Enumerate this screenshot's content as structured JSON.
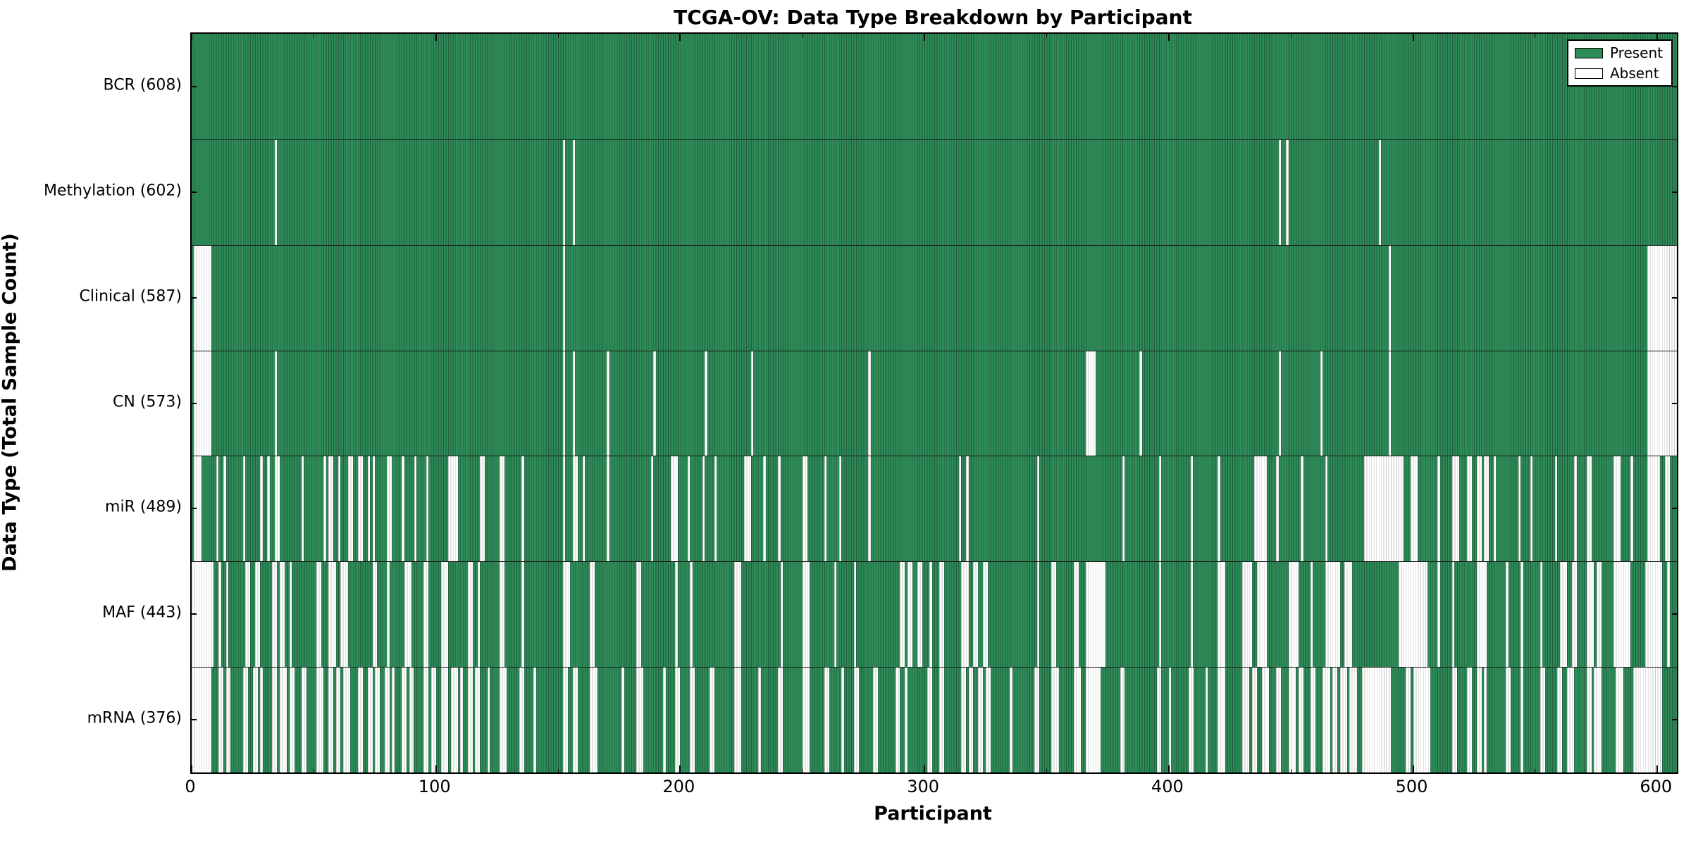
{
  "title": "TCGA-OV: Data Type Breakdown by Participant",
  "legend": {
    "present_label": "Present",
    "absent_label": "Absent"
  },
  "chart_data": {
    "type": "heatmap",
    "title": "TCGA-OV: Data Type Breakdown by Participant",
    "xlabel": "Participant",
    "ylabel": "Data Type (Total Sample Count)",
    "xlim": [
      0,
      608
    ],
    "n_participants": 608,
    "x_ticks": [
      0,
      100,
      200,
      300,
      400,
      500,
      600
    ],
    "x_minor_tick_step": 50,
    "grid": false,
    "legend_position": "upper right",
    "present_color": "#2e8b57",
    "present_edge_color": "#1e5e3d",
    "absent_color": "#ffffff",
    "absent_edge_color": "#c8c8c8",
    "legend_entries": [
      {
        "label": "Present",
        "color": "#2e8b57"
      },
      {
        "label": "Absent",
        "color": "#ffffff"
      }
    ],
    "rows": [
      {
        "label": "BCR (608)",
        "data_type": "BCR",
        "present_count": 608,
        "absent_count": 0,
        "absent_runs": []
      },
      {
        "label": "Methylation (602)",
        "data_type": "Methylation",
        "present_count": 602,
        "absent_count": 6,
        "absent_runs": [
          [
            34,
            1
          ],
          [
            152,
            1
          ],
          [
            156,
            1
          ],
          [
            445,
            1
          ],
          [
            448,
            1
          ],
          [
            486,
            1
          ]
        ]
      },
      {
        "label": "Clinical (587)",
        "data_type": "Clinical",
        "present_count": 587,
        "absent_count": 21,
        "absent_runs": [
          [
            1,
            7
          ],
          [
            152,
            1
          ],
          [
            490,
            1
          ],
          [
            596,
            12
          ]
        ]
      },
      {
        "label": "CN (573)",
        "data_type": "CN",
        "present_count": 573,
        "absent_count": 35,
        "absent_runs": [
          [
            1,
            7
          ],
          [
            34,
            1
          ],
          [
            152,
            1
          ],
          [
            156,
            1
          ],
          [
            170,
            1
          ],
          [
            189,
            1
          ],
          [
            210,
            1
          ],
          [
            229,
            1
          ],
          [
            277,
            1
          ],
          [
            366,
            4
          ],
          [
            388,
            1
          ],
          [
            445,
            1
          ],
          [
            462,
            1
          ],
          [
            490,
            1
          ],
          [
            596,
            12
          ]
        ]
      },
      {
        "label": "miR (489)",
        "data_type": "miR",
        "present_count": 489,
        "absent_count": 119,
        "absent_runs": [
          [
            1,
            3
          ],
          [
            10,
            1
          ],
          [
            13,
            1
          ],
          [
            21,
            1
          ],
          [
            28,
            1
          ],
          [
            31,
            1
          ],
          [
            34,
            2
          ],
          [
            45,
            1
          ],
          [
            54,
            1
          ],
          [
            56,
            2
          ],
          [
            60,
            1
          ],
          [
            64,
            2
          ],
          [
            68,
            2
          ],
          [
            72,
            1
          ],
          [
            74,
            1
          ],
          [
            80,
            2
          ],
          [
            86,
            1
          ],
          [
            91,
            1
          ],
          [
            96,
            1
          ],
          [
            105,
            4
          ],
          [
            118,
            2
          ],
          [
            126,
            2
          ],
          [
            135,
            1
          ],
          [
            152,
            1
          ],
          [
            156,
            2
          ],
          [
            160,
            1
          ],
          [
            170,
            1
          ],
          [
            188,
            1
          ],
          [
            196,
            3
          ],
          [
            203,
            1
          ],
          [
            209,
            1
          ],
          [
            214,
            1
          ],
          [
            226,
            3
          ],
          [
            234,
            1
          ],
          [
            240,
            1
          ],
          [
            250,
            2
          ],
          [
            259,
            1
          ],
          [
            265,
            1
          ],
          [
            277,
            1
          ],
          [
            314,
            1
          ],
          [
            317,
            1
          ],
          [
            346,
            1
          ],
          [
            381,
            1
          ],
          [
            396,
            1
          ],
          [
            409,
            1
          ],
          [
            420,
            1
          ],
          [
            435,
            5
          ],
          [
            444,
            1
          ],
          [
            454,
            1
          ],
          [
            464,
            1
          ],
          [
            480,
            16
          ],
          [
            499,
            3
          ],
          [
            510,
            1
          ],
          [
            516,
            3
          ],
          [
            522,
            2
          ],
          [
            526,
            2
          ],
          [
            529,
            2
          ],
          [
            533,
            1
          ],
          [
            543,
            1
          ],
          [
            548,
            1
          ],
          [
            558,
            1
          ],
          [
            566,
            1
          ],
          [
            571,
            2
          ],
          [
            582,
            3
          ],
          [
            589,
            1
          ],
          [
            596,
            5
          ],
          [
            603,
            2
          ]
        ]
      },
      {
        "label": "MAF (443)",
        "data_type": "MAF",
        "present_count": 443,
        "absent_count": 165,
        "absent_runs": [
          [
            0,
            9
          ],
          [
            11,
            1
          ],
          [
            14,
            1
          ],
          [
            22,
            2
          ],
          [
            26,
            2
          ],
          [
            33,
            2
          ],
          [
            36,
            2
          ],
          [
            40,
            1
          ],
          [
            51,
            2
          ],
          [
            56,
            3
          ],
          [
            61,
            3
          ],
          [
            74,
            2
          ],
          [
            80,
            1
          ],
          [
            87,
            3
          ],
          [
            95,
            2
          ],
          [
            102,
            3
          ],
          [
            113,
            2
          ],
          [
            117,
            1
          ],
          [
            126,
            2
          ],
          [
            135,
            1
          ],
          [
            152,
            3
          ],
          [
            163,
            2
          ],
          [
            182,
            2
          ],
          [
            198,
            1
          ],
          [
            204,
            1
          ],
          [
            222,
            3
          ],
          [
            241,
            1
          ],
          [
            250,
            3
          ],
          [
            263,
            1
          ],
          [
            271,
            1
          ],
          [
            290,
            2
          ],
          [
            293,
            2
          ],
          [
            297,
            2
          ],
          [
            302,
            1
          ],
          [
            306,
            2
          ],
          [
            315,
            3
          ],
          [
            320,
            2
          ],
          [
            324,
            2
          ],
          [
            346,
            1
          ],
          [
            352,
            2
          ],
          [
            361,
            2
          ],
          [
            366,
            8
          ],
          [
            396,
            1
          ],
          [
            409,
            1
          ],
          [
            420,
            3
          ],
          [
            430,
            4
          ],
          [
            436,
            4
          ],
          [
            449,
            4
          ],
          [
            458,
            1
          ],
          [
            464,
            6
          ],
          [
            472,
            3
          ],
          [
            494,
            12
          ],
          [
            510,
            1
          ],
          [
            516,
            1
          ],
          [
            526,
            4
          ],
          [
            538,
            1
          ],
          [
            544,
            1
          ],
          [
            552,
            1
          ],
          [
            560,
            3
          ],
          [
            565,
            2
          ],
          [
            571,
            3
          ],
          [
            575,
            2
          ],
          [
            582,
            7
          ],
          [
            595,
            7
          ],
          [
            604,
            1
          ]
        ]
      },
      {
        "label": "mRNA (376)",
        "data_type": "mRNA",
        "present_count": 376,
        "absent_count": 232,
        "absent_runs": [
          [
            0,
            8
          ],
          [
            11,
            2
          ],
          [
            14,
            2
          ],
          [
            21,
            2
          ],
          [
            25,
            2
          ],
          [
            28,
            1
          ],
          [
            33,
            2
          ],
          [
            36,
            3
          ],
          [
            40,
            2
          ],
          [
            45,
            2
          ],
          [
            51,
            3
          ],
          [
            56,
            2
          ],
          [
            59,
            2
          ],
          [
            62,
            3
          ],
          [
            68,
            2
          ],
          [
            72,
            2
          ],
          [
            75,
            2
          ],
          [
            79,
            2
          ],
          [
            82,
            1
          ],
          [
            86,
            2
          ],
          [
            89,
            2
          ],
          [
            95,
            2
          ],
          [
            98,
            2
          ],
          [
            102,
            3
          ],
          [
            106,
            3
          ],
          [
            110,
            1
          ],
          [
            113,
            2
          ],
          [
            116,
            2
          ],
          [
            121,
            1
          ],
          [
            126,
            3
          ],
          [
            134,
            2
          ],
          [
            140,
            1
          ],
          [
            152,
            2
          ],
          [
            156,
            2
          ],
          [
            163,
            3
          ],
          [
            176,
            1
          ],
          [
            182,
            3
          ],
          [
            193,
            1
          ],
          [
            198,
            2
          ],
          [
            204,
            2
          ],
          [
            212,
            2
          ],
          [
            222,
            3
          ],
          [
            232,
            1
          ],
          [
            240,
            2
          ],
          [
            250,
            3
          ],
          [
            259,
            2
          ],
          [
            266,
            1
          ],
          [
            271,
            2
          ],
          [
            279,
            2
          ],
          [
            288,
            2
          ],
          [
            292,
            1
          ],
          [
            301,
            2
          ],
          [
            306,
            2
          ],
          [
            315,
            2
          ],
          [
            318,
            2
          ],
          [
            322,
            2
          ],
          [
            325,
            2
          ],
          [
            335,
            1
          ],
          [
            345,
            2
          ],
          [
            352,
            3
          ],
          [
            361,
            3
          ],
          [
            366,
            6
          ],
          [
            380,
            2
          ],
          [
            395,
            2
          ],
          [
            400,
            1
          ],
          [
            408,
            2
          ],
          [
            415,
            1
          ],
          [
            420,
            3
          ],
          [
            430,
            3
          ],
          [
            434,
            2
          ],
          [
            438,
            3
          ],
          [
            444,
            2
          ],
          [
            449,
            3
          ],
          [
            453,
            2
          ],
          [
            458,
            2
          ],
          [
            463,
            3
          ],
          [
            467,
            2
          ],
          [
            470,
            3
          ],
          [
            474,
            3
          ],
          [
            479,
            12
          ],
          [
            497,
            2
          ],
          [
            500,
            7
          ],
          [
            516,
            2
          ],
          [
            522,
            2
          ],
          [
            526,
            2
          ],
          [
            529,
            1
          ],
          [
            538,
            2
          ],
          [
            544,
            1
          ],
          [
            552,
            2
          ],
          [
            559,
            2
          ],
          [
            563,
            3
          ],
          [
            571,
            2
          ],
          [
            574,
            3
          ],
          [
            583,
            3
          ],
          [
            590,
            12
          ]
        ]
      }
    ]
  }
}
